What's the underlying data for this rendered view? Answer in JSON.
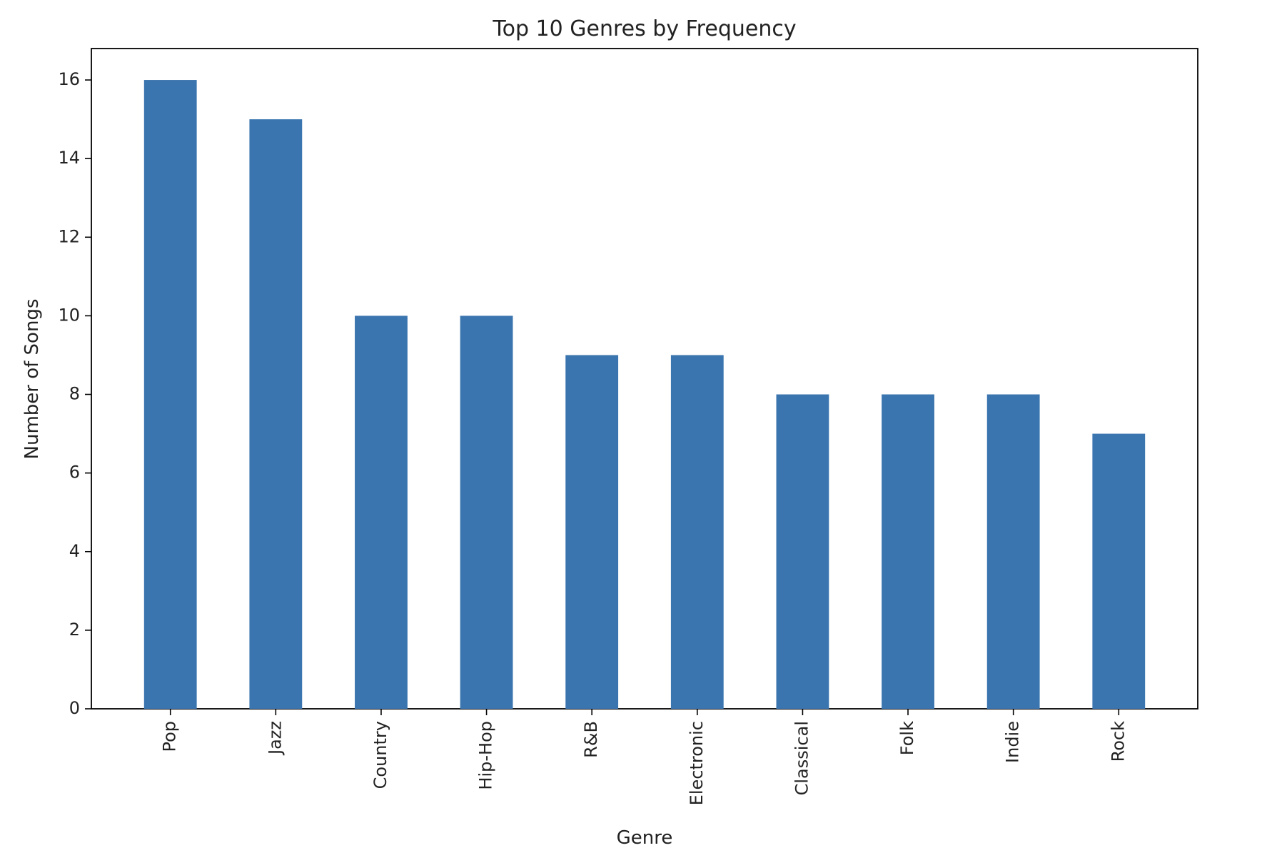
{
  "chart_data": {
    "type": "bar",
    "title": "Top 10 Genres by Frequency",
    "xlabel": "Genre",
    "ylabel": "Number of Songs",
    "categories": [
      "Pop",
      "Jazz",
      "Country",
      "Hip-Hop",
      "R&B",
      "Electronic",
      "Classical",
      "Folk",
      "Indie",
      "Rock"
    ],
    "values": [
      16,
      15,
      10,
      10,
      9,
      9,
      8,
      8,
      8,
      7
    ],
    "ylim": [
      0,
      16.8
    ],
    "yticks": [
      0,
      2,
      4,
      6,
      8,
      10,
      12,
      14,
      16
    ],
    "grid": false,
    "legend": "none",
    "bar_color": "#3b75af",
    "axis_color": "#000000",
    "text_color": "#222222"
  }
}
